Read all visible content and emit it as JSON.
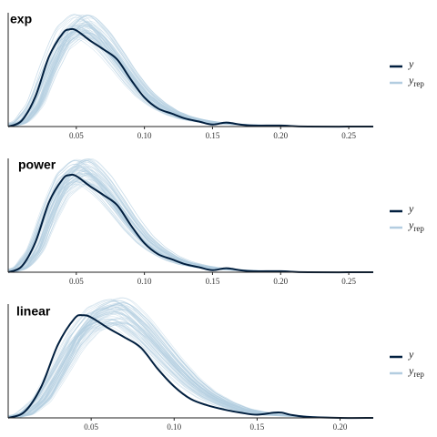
{
  "chart_data": [
    {
      "type": "line",
      "title": "exp",
      "xlabel": "",
      "ylabel": "",
      "xlim": [
        0.0,
        0.268
      ],
      "xticks": [
        0.05,
        0.1,
        0.15,
        0.2,
        0.25
      ],
      "xtick_labels": [
        "0.05",
        "0.10",
        "0.15",
        "0.20",
        "0.25"
      ],
      "grid": false,
      "legend_position": "right",
      "legend": {
        "y_label": "y",
        "yrep_label": "y",
        "yrep_sub": "rep"
      },
      "series": [
        {
          "name": "y",
          "color": "#011f3f",
          "x": [
            0.0,
            0.01,
            0.02,
            0.03,
            0.04,
            0.045,
            0.05,
            0.06,
            0.07,
            0.08,
            0.09,
            0.1,
            0.11,
            0.12,
            0.13,
            0.14,
            0.15,
            0.16,
            0.17,
            0.18,
            0.2,
            0.22,
            0.268
          ],
          "y": [
            0.0,
            0.06,
            0.3,
            0.7,
            0.93,
            0.97,
            0.96,
            0.86,
            0.77,
            0.67,
            0.47,
            0.29,
            0.18,
            0.13,
            0.08,
            0.05,
            0.02,
            0.04,
            0.02,
            0.01,
            0.01,
            0.0,
            0.0
          ]
        },
        {
          "name": "y_rep",
          "color": "#b3cde0",
          "x": [
            0.0,
            0.01,
            0.02,
            0.03,
            0.04,
            0.05,
            0.055,
            0.06,
            0.07,
            0.08,
            0.09,
            0.1,
            0.11,
            0.12,
            0.13,
            0.14,
            0.15,
            0.17,
            0.19,
            0.21,
            0.268
          ],
          "y": [
            0.0,
            0.05,
            0.22,
            0.58,
            0.88,
            1.0,
            1.02,
            0.99,
            0.86,
            0.68,
            0.49,
            0.33,
            0.22,
            0.14,
            0.09,
            0.06,
            0.04,
            0.02,
            0.01,
            0.0,
            0.0
          ]
        }
      ]
    },
    {
      "type": "line",
      "title": "power",
      "xlabel": "",
      "ylabel": "",
      "xlim": [
        0.0,
        0.268
      ],
      "xticks": [
        0.05,
        0.1,
        0.15,
        0.2,
        0.25
      ],
      "xtick_labels": [
        "0.05",
        "0.10",
        "0.15",
        "0.20",
        "0.25"
      ],
      "grid": false,
      "legend_position": "right",
      "legend": {
        "y_label": "y",
        "yrep_label": "y",
        "yrep_sub": "rep"
      },
      "series": [
        {
          "name": "y",
          "color": "#011f3f",
          "x": [
            0.0,
            0.01,
            0.02,
            0.03,
            0.04,
            0.045,
            0.05,
            0.06,
            0.07,
            0.08,
            0.09,
            0.1,
            0.11,
            0.12,
            0.13,
            0.14,
            0.15,
            0.16,
            0.17,
            0.18,
            0.2,
            0.22,
            0.268
          ],
          "y": [
            0.0,
            0.06,
            0.3,
            0.7,
            0.93,
            0.97,
            0.96,
            0.86,
            0.77,
            0.67,
            0.47,
            0.29,
            0.18,
            0.13,
            0.08,
            0.05,
            0.02,
            0.04,
            0.02,
            0.01,
            0.01,
            0.0,
            0.0
          ]
        },
        {
          "name": "y_rep",
          "color": "#b3cde0",
          "x": [
            0.0,
            0.01,
            0.02,
            0.03,
            0.04,
            0.05,
            0.055,
            0.06,
            0.07,
            0.08,
            0.09,
            0.1,
            0.11,
            0.12,
            0.13,
            0.14,
            0.15,
            0.17,
            0.19,
            0.21,
            0.268
          ],
          "y": [
            0.0,
            0.05,
            0.22,
            0.58,
            0.88,
            1.0,
            1.02,
            0.99,
            0.86,
            0.68,
            0.49,
            0.33,
            0.22,
            0.14,
            0.09,
            0.06,
            0.04,
            0.02,
            0.01,
            0.0,
            0.0
          ]
        }
      ]
    },
    {
      "type": "line",
      "title": "linear",
      "xlabel": "",
      "ylabel": "",
      "xlim": [
        0.0,
        0.22
      ],
      "xticks": [
        0.05,
        0.1,
        0.15,
        0.2
      ],
      "xtick_labels": [
        "0.05",
        "0.10",
        "0.15",
        "0.20"
      ],
      "grid": false,
      "legend_position": "right",
      "legend": {
        "y_label": "y",
        "yrep_label": "y",
        "yrep_sub": "rep"
      },
      "series": [
        {
          "name": "y",
          "color": "#011f3f",
          "x": [
            0.0,
            0.01,
            0.02,
            0.03,
            0.04,
            0.045,
            0.05,
            0.06,
            0.07,
            0.08,
            0.09,
            0.1,
            0.11,
            0.12,
            0.13,
            0.14,
            0.15,
            0.16,
            0.165,
            0.17,
            0.18,
            0.2,
            0.22
          ],
          "y": [
            0.0,
            0.06,
            0.3,
            0.7,
            0.95,
            0.98,
            0.96,
            0.86,
            0.77,
            0.67,
            0.47,
            0.3,
            0.18,
            0.12,
            0.08,
            0.05,
            0.03,
            0.05,
            0.05,
            0.03,
            0.01,
            0.0,
            0.0
          ]
        },
        {
          "name": "y_rep",
          "color": "#b3cde0",
          "x": [
            0.0,
            0.01,
            0.02,
            0.03,
            0.04,
            0.05,
            0.06,
            0.065,
            0.07,
            0.08,
            0.09,
            0.1,
            0.11,
            0.12,
            0.13,
            0.14,
            0.15,
            0.16,
            0.18,
            0.2,
            0.22
          ],
          "y": [
            0.0,
            0.04,
            0.18,
            0.46,
            0.76,
            0.95,
            1.02,
            1.03,
            1.0,
            0.86,
            0.68,
            0.5,
            0.34,
            0.22,
            0.14,
            0.08,
            0.05,
            0.03,
            0.01,
            0.0,
            0.0
          ]
        }
      ]
    }
  ]
}
